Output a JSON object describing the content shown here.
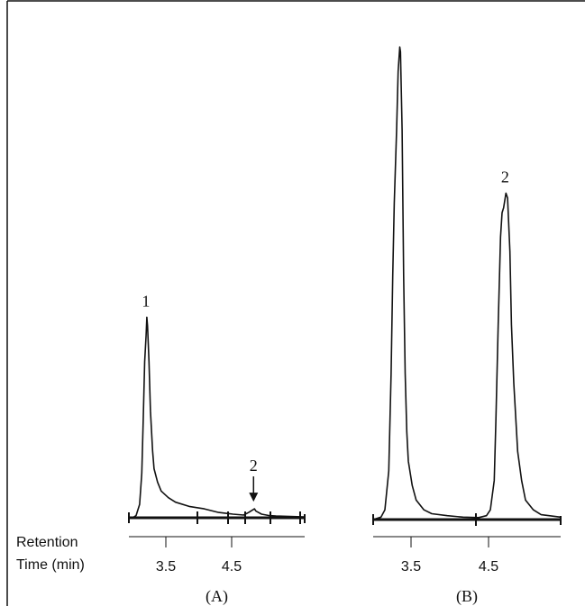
{
  "axis_label_line1": "Retention",
  "axis_label_line2": "Time (min)",
  "chart_data": [
    {
      "type": "line",
      "panel_label": "(A)",
      "xlabel": "Retention Time (min)",
      "ylabel": "",
      "x_ticks": [
        "3.5",
        "4.5"
      ],
      "xlim": [
        2.95,
        5.4
      ],
      "ylim": [
        0,
        100
      ],
      "peaks": [
        {
          "label": "1",
          "retention_time": 3.2,
          "height": 45
        },
        {
          "label": "2",
          "retention_time": 4.7,
          "height": 2,
          "marked_with_arrow": true
        }
      ],
      "series": [
        {
          "x": [
            2.95,
            3.0,
            3.05,
            3.1,
            3.13,
            3.15,
            3.17,
            3.19,
            3.2,
            3.21,
            3.23,
            3.25,
            3.28,
            3.3,
            3.35,
            3.4,
            3.5,
            3.6,
            3.8,
            4.0,
            4.2,
            4.4,
            4.55,
            4.62,
            4.68,
            4.7,
            4.72,
            4.8,
            4.9,
            5.0,
            5.2,
            5.4
          ],
          "values": [
            0,
            0,
            0.5,
            3,
            10,
            22,
            35,
            41,
            45,
            43,
            35,
            24,
            15,
            11,
            8,
            6,
            4.5,
            3.5,
            2.5,
            2,
            1.2,
            0.8,
            0.6,
            1.2,
            1.8,
            2.0,
            1.5,
            0.8,
            0.5,
            0.4,
            0.3,
            0.2
          ]
        }
      ]
    },
    {
      "type": "line",
      "panel_label": "(B)",
      "xlabel": "Retention Time (min)",
      "ylabel": "",
      "x_ticks": [
        "3.5",
        "4.5"
      ],
      "xlim": [
        2.95,
        5.35
      ],
      "ylim": [
        0,
        100
      ],
      "peaks": [
        {
          "label": "",
          "retention_time": 3.3,
          "height": 97
        },
        {
          "label": "2",
          "retention_time": 4.65,
          "height": 67
        }
      ],
      "series": [
        {
          "x": [
            2.95,
            3.05,
            3.1,
            3.15,
            3.18,
            3.2,
            3.22,
            3.25,
            3.27,
            3.29,
            3.3,
            3.32,
            3.34,
            3.36,
            3.38,
            3.4,
            3.45,
            3.5,
            3.6,
            3.7,
            3.9,
            4.1,
            4.3,
            4.4,
            4.45,
            4.5,
            4.52,
            4.55,
            4.58,
            4.6,
            4.62,
            4.65,
            4.67,
            4.7,
            4.72,
            4.75,
            4.8,
            4.85,
            4.9,
            5.0,
            5.1,
            5.35
          ],
          "values": [
            0,
            0.5,
            2,
            10,
            30,
            50,
            65,
            80,
            92,
            97,
            96,
            80,
            50,
            30,
            18,
            12,
            7,
            4,
            2,
            1.2,
            0.8,
            0.5,
            0.4,
            0.8,
            2,
            8,
            20,
            40,
            58,
            63,
            64,
            67,
            66,
            55,
            40,
            28,
            14,
            8,
            4,
            2,
            1,
            0.5
          ]
        }
      ]
    }
  ]
}
